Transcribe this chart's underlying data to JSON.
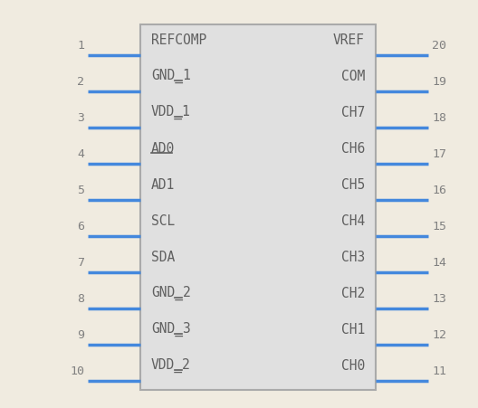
{
  "background_color": "#f0ebe0",
  "body_facecolor": "#e0e0e0",
  "body_edgecolor": "#aaaaaa",
  "pin_color": "#4488dd",
  "text_color": "#606060",
  "num_color": "#808080",
  "left_pins": [
    {
      "num": 1,
      "label": "REFCOMP",
      "bar_suffix": ""
    },
    {
      "num": 2,
      "label": "GND_1",
      "bar_suffix": "1"
    },
    {
      "num": 3,
      "label": "VDD_1",
      "bar_suffix": "1"
    },
    {
      "num": 4,
      "label": "AD0",
      "bar_suffix": "0"
    },
    {
      "num": 5,
      "label": "AD1",
      "bar_suffix": ""
    },
    {
      "num": 6,
      "label": "SCL",
      "bar_suffix": ""
    },
    {
      "num": 7,
      "label": "SDA",
      "bar_suffix": ""
    },
    {
      "num": 8,
      "label": "GND_2",
      "bar_suffix": "2"
    },
    {
      "num": 9,
      "label": "GND_3",
      "bar_suffix": "3"
    },
    {
      "num": 10,
      "label": "VDD_2",
      "bar_suffix": "2"
    }
  ],
  "right_pins": [
    {
      "num": 20,
      "label": "VREF",
      "bar_suffix": ""
    },
    {
      "num": 19,
      "label": "COM",
      "bar_suffix": ""
    },
    {
      "num": 18,
      "label": "CH7",
      "bar_suffix": ""
    },
    {
      "num": 17,
      "label": "CH6",
      "bar_suffix": ""
    },
    {
      "num": 16,
      "label": "CH5",
      "bar_suffix": ""
    },
    {
      "num": 15,
      "label": "CH4",
      "bar_suffix": ""
    },
    {
      "num": 14,
      "label": "CH3",
      "bar_suffix": ""
    },
    {
      "num": 13,
      "label": "CH2",
      "bar_suffix": ""
    },
    {
      "num": 12,
      "label": "CH1",
      "bar_suffix": ""
    },
    {
      "num": 11,
      "label": "CH0",
      "bar_suffix": ""
    }
  ],
  "fig_w": 5.28,
  "fig_h": 4.52,
  "dpi": 100
}
